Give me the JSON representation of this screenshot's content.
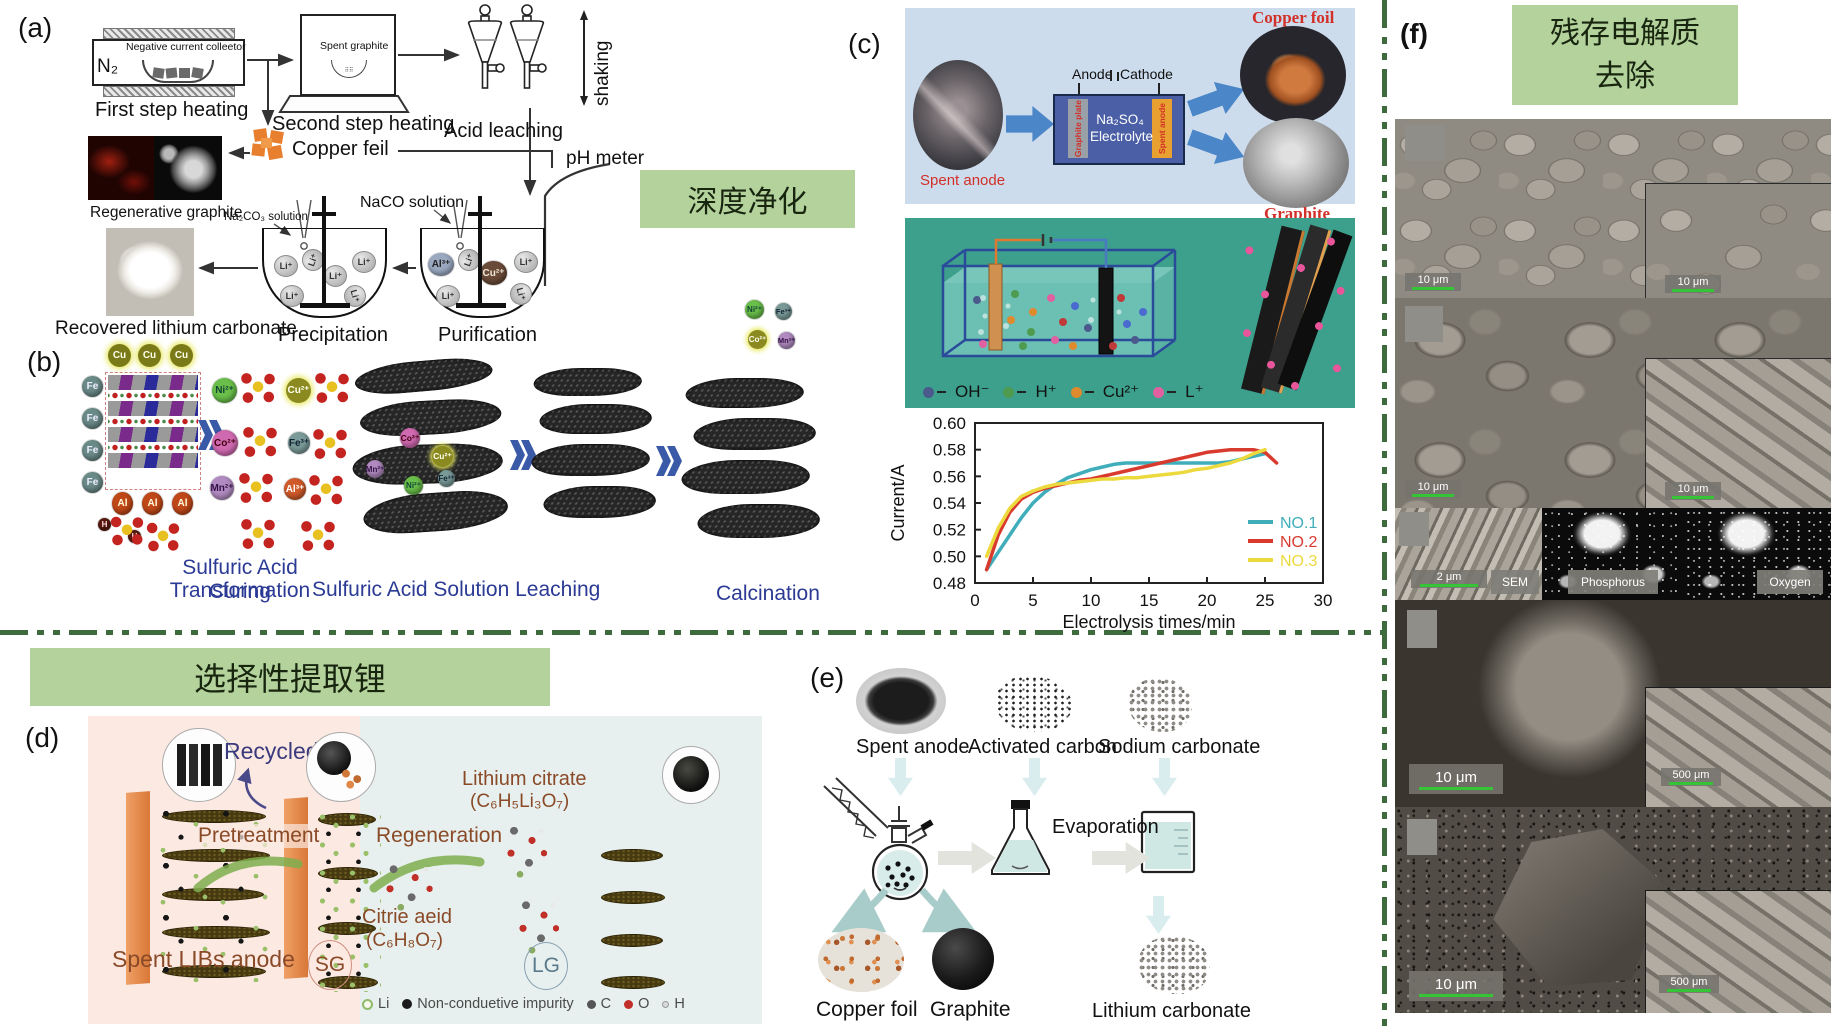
{
  "colors": {
    "banner_bg": "#b4d29c",
    "divider_green": "#3d6b3d",
    "series_no1": "#3fadba",
    "series_no2": "#d93a2e",
    "series_no3": "#ecd93e",
    "teal_bg": "#3da08d",
    "cell_blue": "#4a5fa5",
    "copper_orange": "#e8935a"
  },
  "banners": {
    "deep_purification": "深度净化",
    "selective_lithium": "选择性提取锂",
    "residual_line1": "残存电解质",
    "residual_line2": "去除"
  },
  "panel_a": {
    "label": "(a)",
    "n2": "N₂",
    "collector": "Negative current colleetor",
    "first_heating": "First step heating",
    "spent_graphite": "Spent graphite",
    "second_heating": "Second step heating",
    "shaking": "shaking",
    "acid_leaching": "Acid leaching",
    "copper_feil": "Copper feil",
    "ph_meter": "pH meter",
    "na2co3_solution": "Na₂CO₃ solution",
    "naco_solution": "NaCO solution",
    "regenerative_graphite": "Regenerative graphite",
    "recovered": "Recovered lithium carbonate",
    "precipitation": "Precipitation",
    "purification": "Purification",
    "beaker1_ions": [
      "Li⁺",
      "Li⁺",
      "Li⁺",
      "Li⁺",
      "Li⁺",
      "Li⁺"
    ],
    "beaker2_ions": [
      "Al³⁺",
      "Li⁺",
      "Cu²⁺",
      "Li⁺",
      "Li⁺",
      "Li⁺"
    ]
  },
  "panel_b": {
    "label": "(b)",
    "step1_line1": "Sulfuric Acid Curing",
    "step1_line2": "Transformation",
    "step2": "Sulfuric Acid Solution Leaching",
    "step3": "Calcination",
    "lattice_ions": {
      "cu": "Cu",
      "fe": "Fe",
      "al": "Al",
      "h": "H"
    },
    "grid_ions": [
      {
        "label": "Ni²⁺",
        "color": "#6abf4a"
      },
      {
        "label": "Cu²⁺",
        "color": "#8a8a20"
      },
      {
        "label": "Co²⁺",
        "color": "#d06ab0"
      },
      {
        "label": "Fe³⁺",
        "color": "#7a9a98"
      },
      {
        "label": "Mn²⁺",
        "color": "#b08ac0"
      },
      {
        "label": "Al³⁺",
        "color": "#d05a2a"
      }
    ],
    "sheet_ions": [
      "Co²⁺",
      "Cu²⁺",
      "Mn²⁺",
      "Ni²⁺",
      "Fe³⁺"
    ],
    "float_ions": [
      "Ni²⁺",
      "Fe³⁺",
      "Co²⁺",
      "Mn²⁺"
    ]
  },
  "panel_c": {
    "label": "(c)",
    "spent_anode": "Spent anode",
    "anode": "Anode",
    "cathode": "Cathode",
    "electrolyte_line1": "Na₂SO₄",
    "electrolyte_line2": "Electrolyte",
    "graphite_plate_bar": "Graphite plate",
    "spent_anode_bar": "Spent anode",
    "copper_foil": "Copper foil",
    "graphite": "Graphite",
    "ion_legend": [
      {
        "label": "OH⁻",
        "color": "#4a5a8c"
      },
      {
        "label": "H⁺",
        "color": "#4e9a4e"
      },
      {
        "label": "Cu²⁺",
        "color": "#e08a2e"
      },
      {
        "label": "L⁺",
        "color": "#e060a0"
      }
    ]
  },
  "chart_data": {
    "type": "line",
    "title": "",
    "xlabel": "Electrolysis times/min",
    "ylabel": "Current/A",
    "xlim": [
      0,
      30
    ],
    "ylim": [
      0.48,
      0.6
    ],
    "xticks": [
      0,
      5,
      10,
      15,
      20,
      25,
      30
    ],
    "yticks": [
      0.48,
      0.5,
      0.52,
      0.54,
      0.56,
      0.58,
      0.6
    ],
    "grid": false,
    "legend_position": "right-center",
    "series": [
      {
        "name": "NO.1",
        "color": "#3fadba",
        "points": [
          [
            1,
            0.49
          ],
          [
            2,
            0.503
          ],
          [
            3,
            0.516
          ],
          [
            4,
            0.529
          ],
          [
            5,
            0.54
          ],
          [
            6,
            0.548
          ],
          [
            7,
            0.554
          ],
          [
            8,
            0.559
          ],
          [
            9,
            0.562
          ],
          [
            10,
            0.565
          ],
          [
            11,
            0.567
          ],
          [
            12,
            0.569
          ],
          [
            13,
            0.57
          ],
          [
            14,
            0.57
          ],
          [
            15,
            0.57
          ],
          [
            16,
            0.57
          ],
          [
            17,
            0.57
          ],
          [
            18,
            0.57
          ],
          [
            19,
            0.57
          ],
          [
            20,
            0.57
          ],
          [
            21,
            0.57
          ],
          [
            22,
            0.571
          ],
          [
            23,
            0.573
          ],
          [
            24,
            0.575
          ],
          [
            25,
            0.577
          ]
        ]
      },
      {
        "name": "NO.2",
        "color": "#d93a2e",
        "points": [
          [
            1,
            0.49
          ],
          [
            2,
            0.516
          ],
          [
            3,
            0.533
          ],
          [
            4,
            0.543
          ],
          [
            5,
            0.548
          ],
          [
            6,
            0.551
          ],
          [
            7,
            0.553
          ],
          [
            8,
            0.555
          ],
          [
            9,
            0.557
          ],
          [
            10,
            0.558
          ],
          [
            11,
            0.56
          ],
          [
            12,
            0.562
          ],
          [
            13,
            0.564
          ],
          [
            14,
            0.566
          ],
          [
            15,
            0.568
          ],
          [
            16,
            0.57
          ],
          [
            17,
            0.572
          ],
          [
            18,
            0.574
          ],
          [
            19,
            0.576
          ],
          [
            20,
            0.578
          ],
          [
            21,
            0.579
          ],
          [
            22,
            0.58
          ],
          [
            23,
            0.58
          ],
          [
            24,
            0.58
          ],
          [
            25,
            0.578
          ],
          [
            26,
            0.57
          ]
        ]
      },
      {
        "name": "NO.3",
        "color": "#ecd93e",
        "points": [
          [
            1,
            0.5
          ],
          [
            2,
            0.521
          ],
          [
            3,
            0.536
          ],
          [
            4,
            0.545
          ],
          [
            5,
            0.549
          ],
          [
            6,
            0.552
          ],
          [
            7,
            0.554
          ],
          [
            8,
            0.555
          ],
          [
            9,
            0.556
          ],
          [
            10,
            0.557
          ],
          [
            11,
            0.558
          ],
          [
            12,
            0.558
          ],
          [
            13,
            0.559
          ],
          [
            14,
            0.559
          ],
          [
            15,
            0.56
          ],
          [
            16,
            0.561
          ],
          [
            17,
            0.562
          ],
          [
            18,
            0.563
          ],
          [
            19,
            0.565
          ],
          [
            20,
            0.566
          ],
          [
            21,
            0.568
          ],
          [
            22,
            0.57
          ],
          [
            23,
            0.573
          ],
          [
            24,
            0.577
          ],
          [
            25,
            0.58
          ]
        ]
      }
    ]
  },
  "panel_d": {
    "label": "(d)",
    "recycled": "Recycled",
    "pretreatment": "Pretreatment",
    "regeneration": "Regeneration",
    "lithium_citrate": "Lithium citrate",
    "lithium_citrate_formula": "(C₆H₅Li₃O₇)",
    "citric_acid": "Citrie aeid",
    "citric_acid_formula": "(C₆H₈O₇)",
    "spent_libs_anode": "Spent LIBs anode",
    "sg": "SG",
    "lg": "LG",
    "legend": [
      {
        "label": "Li",
        "color": "#8fba6a"
      },
      {
        "label": "Non-conduetive impurity",
        "color": "#1a1a1a"
      },
      {
        "label": "C",
        "color": "#555555"
      },
      {
        "label": "O",
        "color": "#c03028"
      },
      {
        "label": "H",
        "color": "#d8d8d8"
      }
    ]
  },
  "panel_e": {
    "label": "(e)",
    "spent_anode": "Spent anode",
    "activated_carbon": "Activated carbon",
    "sodium_carbonate": "Sodium carbonate",
    "evaporation": "Evaporation",
    "copper_foil": "Copper foil",
    "graphite": "Graphite",
    "lithium_carbonate": "Lithium carbonate"
  },
  "panel_f": {
    "label": "(f)",
    "rows": [
      {
        "main_scale": "10 μm",
        "inset_scale": "10 μm"
      },
      {
        "main_scale": "10 μm",
        "inset_scale": "10 μm"
      },
      {
        "scale": "2 μm",
        "sem": "SEM",
        "phosphorus": "Phosphorus",
        "oxygen": "Oxygen"
      },
      {
        "main_scale": "10 μm",
        "inset_scale": "500 μm"
      },
      {
        "main_scale": "10 μm",
        "inset_scale": "500 μm"
      }
    ]
  }
}
